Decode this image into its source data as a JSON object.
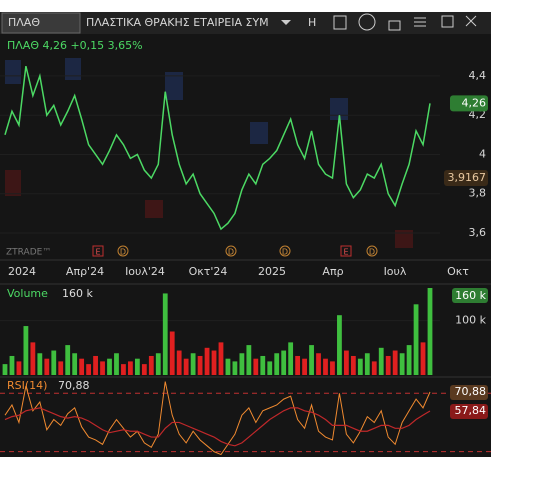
{
  "toolbar": {
    "symbol": "ΠΛΑΘ",
    "company": "ΠΛΑΣΤΙΚΑ ΘΡΑΚΗΣ ΕΤΑΙΡΕΙΑ ΣΥΜ",
    "mode": "H"
  },
  "price_chart": {
    "legend": "ΠΛΑΘ 4,26 +0,15 3,65%",
    "watermark": "ZTRADE™",
    "last_label": "4,26",
    "level_label": "3,9167",
    "events": [
      "E",
      "D",
      "D",
      "D",
      "E",
      "D"
    ],
    "ylim": [
      3.488,
      4.583
    ],
    "yticks": [
      {
        "value": 4.4,
        "label": "4,4"
      },
      {
        "value": 4.2,
        "label": "4,2"
      },
      4,
      {
        "value": 3.8,
        "label": "3,8"
      },
      {
        "value": 3.6,
        "label": "3,6"
      }
    ],
    "categories": [
      "2024",
      "Απρ'24",
      "Ιουλ'24",
      "Οκτ'24",
      "2025",
      "Απρ",
      "Ιουλ",
      "Οκτ"
    ],
    "color": "#4cd964",
    "values": [
      4.1,
      4.22,
      4.15,
      4.45,
      4.3,
      4.4,
      4.2,
      4.25,
      4.15,
      4.22,
      4.3,
      4.18,
      4.05,
      4.0,
      3.95,
      4.02,
      4.1,
      4.05,
      3.98,
      4.0,
      3.92,
      3.88,
      3.95,
      4.32,
      4.1,
      3.95,
      3.85,
      3.9,
      3.8,
      3.75,
      3.7,
      3.62,
      3.65,
      3.7,
      3.82,
      3.9,
      3.85,
      3.95,
      3.98,
      4.02,
      4.1,
      4.18,
      4.05,
      3.98,
      4.12,
      3.95,
      3.9,
      3.88,
      4.2,
      3.85,
      3.78,
      3.82,
      3.9,
      3.88,
      3.95,
      3.8,
      3.74,
      3.85,
      3.95,
      4.12,
      4.05,
      4.26
    ]
  },
  "volume_chart": {
    "legend_name": "Volume",
    "legend_value": "160 k",
    "badge": "160 k",
    "ylim": [
      0,
      160000
    ],
    "yticks": [
      {
        "value": 100000,
        "label": "100 k"
      }
    ],
    "up_color": "#3fbf3f",
    "down_color": "#e02020",
    "values": [
      20000,
      35000,
      25000,
      90000,
      60000,
      40000,
      30000,
      45000,
      25000,
      55000,
      40000,
      30000,
      20000,
      35000,
      25000,
      30000,
      40000,
      20000,
      25000,
      30000,
      20000,
      35000,
      40000,
      150000,
      80000,
      45000,
      30000,
      40000,
      35000,
      50000,
      45000,
      60000,
      30000,
      25000,
      40000,
      55000,
      30000,
      35000,
      25000,
      40000,
      45000,
      60000,
      35000,
      30000,
      55000,
      40000,
      30000,
      25000,
      110000,
      45000,
      35000,
      30000,
      40000,
      25000,
      50000,
      35000,
      45000,
      40000,
      55000,
      130000,
      60000,
      160000
    ]
  },
  "rsi_chart": {
    "legend_name": "RSI(14)",
    "legend_value": "70,88",
    "ylim": [
      27.7,
      79.1
    ],
    "levels": [
      70,
      30
    ],
    "series": [
      {
        "name": "RSI",
        "color": "#f08a30",
        "badge": "70,88",
        "values": [
          55,
          62,
          50,
          75,
          58,
          64,
          45,
          52,
          48,
          56,
          60,
          47,
          40,
          38,
          35,
          45,
          52,
          46,
          40,
          44,
          36,
          33,
          42,
          78,
          55,
          42,
          36,
          44,
          38,
          34,
          30,
          28,
          35,
          42,
          55,
          60,
          50,
          58,
          60,
          62,
          66,
          68,
          52,
          46,
          62,
          44,
          40,
          38,
          70,
          42,
          36,
          44,
          54,
          50,
          58,
          40,
          35,
          50,
          58,
          66,
          60,
          70.88
        ]
      },
      {
        "name": "MA",
        "color": "#c0282a",
        "badge": "57,84",
        "values": [
          52,
          54,
          55,
          58,
          59,
          60,
          58,
          56,
          54,
          53,
          54,
          53,
          51,
          48,
          45,
          43,
          44,
          45,
          44,
          44,
          42,
          40,
          40,
          46,
          50,
          50,
          48,
          46,
          44,
          42,
          40,
          37,
          35,
          34,
          36,
          40,
          44,
          48,
          52,
          55,
          58,
          60,
          60,
          58,
          57,
          55,
          52,
          48,
          48,
          48,
          46,
          44,
          44,
          46,
          48,
          48,
          46,
          46,
          48,
          52,
          55,
          57.84
        ]
      }
    ]
  }
}
